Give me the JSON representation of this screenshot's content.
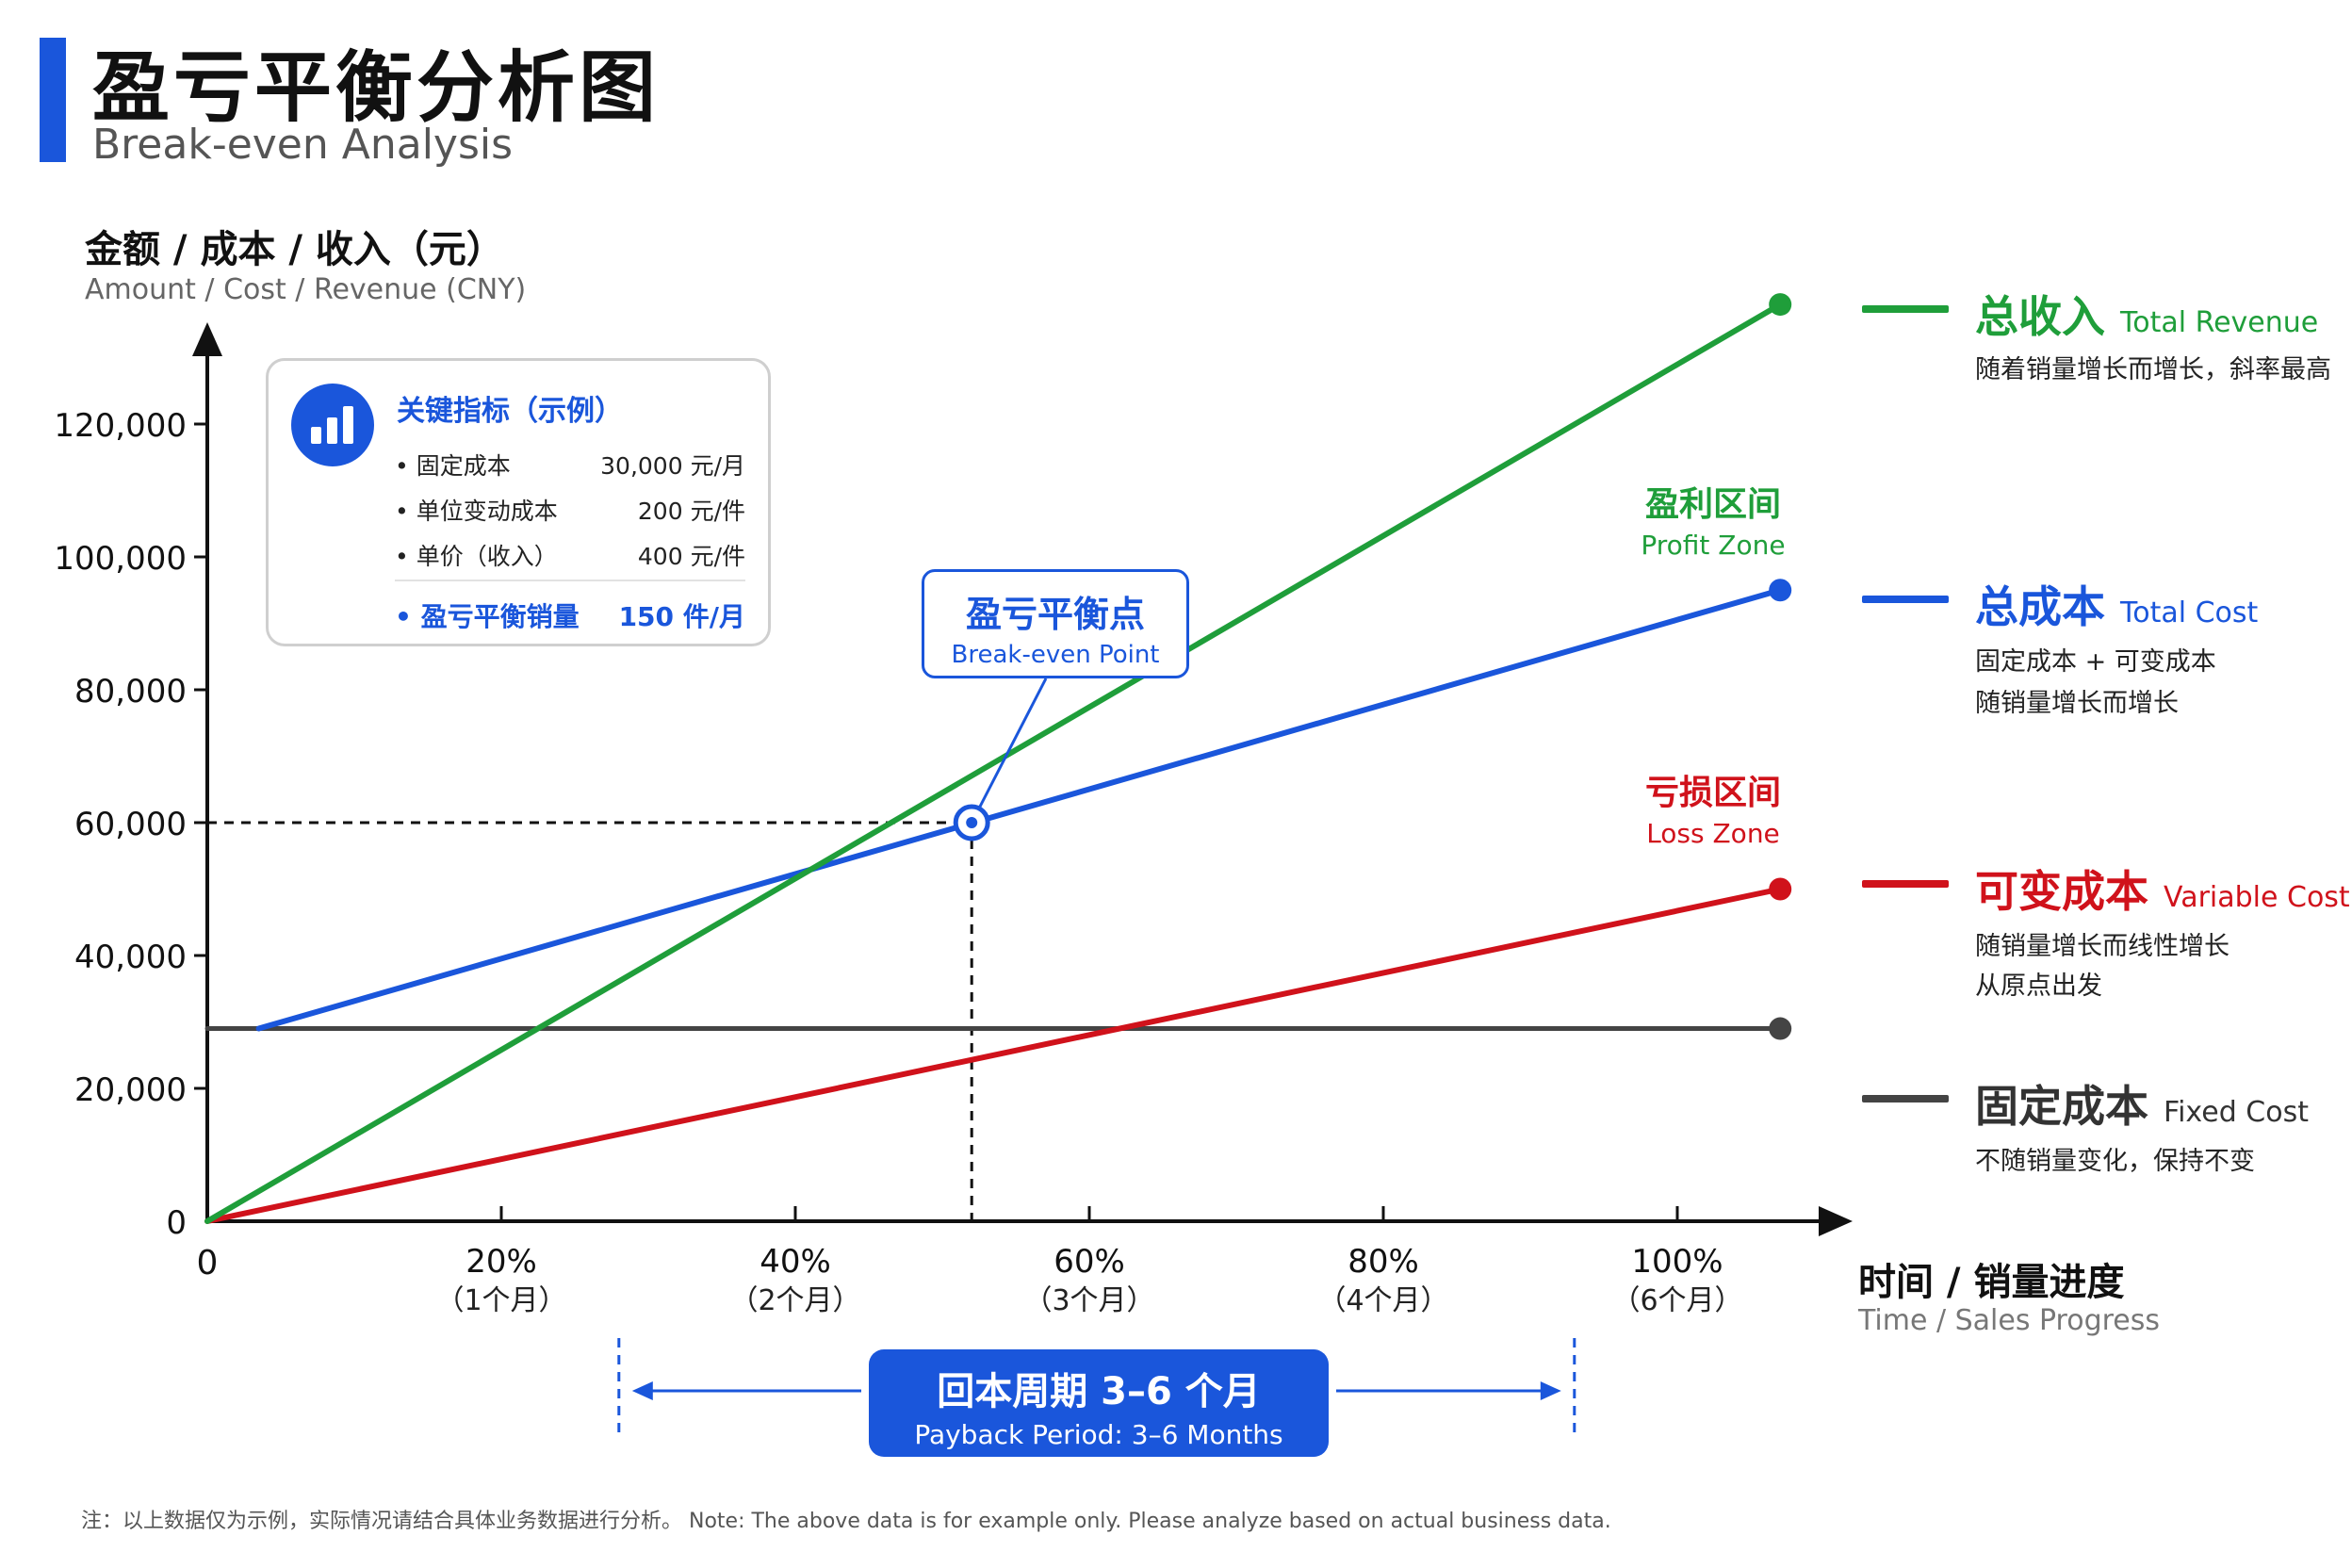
{
  "header": {
    "title_cn": "盈亏平衡分析图",
    "title_en": "Break-even Analysis"
  },
  "colors": {
    "accent": "#1a56db",
    "revenue": "#1f9e3a",
    "total_cost": "#1a56db",
    "variable_cost": "#d0121b",
    "fixed_cost": "#444444"
  },
  "metrics": {
    "title": "关键指标（示例）",
    "rows": [
      {
        "label": "• 固定成本",
        "value": "30,000 元/月"
      },
      {
        "label": "• 单位变动成本",
        "value": "200 元/件"
      },
      {
        "label": "• 单价（收入）",
        "value": "400 元/件"
      },
      {
        "label": "• 盈亏平衡销量",
        "value": "150 件/月"
      }
    ]
  },
  "break_even_callout": {
    "cn": "盈亏平衡点",
    "en": "Break-even Point"
  },
  "zones": {
    "profit": {
      "cn": "盈利区间",
      "en": "Profit Zone"
    },
    "loss": {
      "cn": "亏损区间",
      "en": "Loss Zone"
    }
  },
  "legend": [
    {
      "key": "revenue",
      "cn": "总收入",
      "en": "Total Revenue",
      "desc": [
        "随着销量增长而增长，斜率最高"
      ]
    },
    {
      "key": "total_cost",
      "cn": "总成本",
      "en": "Total Cost",
      "desc": [
        "固定成本 + 可变成本",
        "随销量增长而增长"
      ]
    },
    {
      "key": "variable_cost",
      "cn": "可变成本",
      "en": "Variable Cost",
      "desc": [
        "随销量增长而线性增长",
        "从原点出发"
      ]
    },
    {
      "key": "fixed_cost",
      "cn": "固定成本",
      "en": "Fixed Cost",
      "desc": [
        "不随销量变化，保持不变"
      ]
    }
  ],
  "payback": {
    "cn": "回本周期 3–6 个月",
    "en": "Payback Period: 3–6 Months"
  },
  "footnote": "注：以上数据仅为示例，实际情况请结合具体业务数据进行分析。 Note: The above data is for example only. Please analyze based on actual business data.",
  "chart_data": {
    "type": "line",
    "ylabel_cn": "金额 / 成本 / 收入（元）",
    "ylabel_en": "Amount / Cost / Revenue (CNY)",
    "xlabel_cn": "时间 / 销量进度",
    "xlabel_en": "Time / Sales Progress",
    "ylim": [
      0,
      120000
    ],
    "xlim": [
      0,
      100
    ],
    "y_ticks": [
      {
        "value": 0,
        "label": "0"
      },
      {
        "value": 20000,
        "label": "20,000"
      },
      {
        "value": 40000,
        "label": "40,000"
      },
      {
        "value": 60000,
        "label": "60,000"
      },
      {
        "value": 80000,
        "label": "80,000"
      },
      {
        "value": 100000,
        "label": "100,000"
      },
      {
        "value": 120000,
        "label": "120,000"
      }
    ],
    "x_ticks": [
      {
        "value": 0,
        "label": "0",
        "sub": ""
      },
      {
        "value": 20,
        "label": "20%",
        "sub": "（1个月）"
      },
      {
        "value": 40,
        "label": "40%",
        "sub": "（2个月）"
      },
      {
        "value": 60,
        "label": "60%",
        "sub": "（3个月）"
      },
      {
        "value": 80,
        "label": "80%",
        "sub": "（4个月）"
      },
      {
        "value": 100,
        "label": "100%",
        "sub": "（6个月）"
      }
    ],
    "series": [
      {
        "name": "总收入 Total Revenue",
        "key": "revenue",
        "points": [
          [
            0,
            0
          ],
          [
            107,
            138000
          ]
        ]
      },
      {
        "name": "总成本 Total Cost",
        "key": "total_cost",
        "points": [
          [
            3.5,
            29000
          ],
          [
            107,
            95000
          ]
        ]
      },
      {
        "name": "可变成本 Variable Cost",
        "key": "variable_cost",
        "points": [
          [
            0,
            0
          ],
          [
            107,
            50000
          ]
        ]
      },
      {
        "name": "固定成本 Fixed Cost",
        "key": "fixed_cost",
        "points": [
          [
            0,
            29000
          ],
          [
            107,
            29000
          ]
        ]
      }
    ],
    "break_even": {
      "x": 52,
      "y": 60000
    },
    "payback_range": [
      28,
      93
    ]
  }
}
